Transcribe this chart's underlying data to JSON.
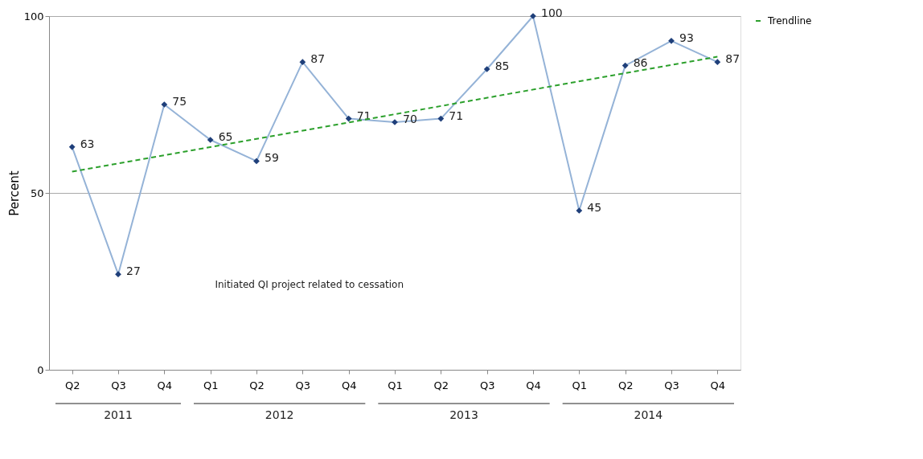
{
  "chart_data": {
    "type": "line",
    "ylabel": "Percent",
    "categories": [
      "Q2",
      "Q3",
      "Q4",
      "Q1",
      "Q2",
      "Q3",
      "Q4",
      "Q1",
      "Q2",
      "Q3",
      "Q4",
      "Q1",
      "Q2",
      "Q3",
      "Q4"
    ],
    "series": [
      {
        "color": "#95b3d7",
        "values": [
          63,
          27,
          75,
          65,
          59,
          87,
          71,
          70,
          71,
          85,
          100,
          45,
          86,
          93,
          87
        ],
        "marker": "diamond",
        "line_style": "solid",
        "data_labels": true
      },
      {
        "name": "Trendline",
        "type": "line",
        "color": "#2ca02c",
        "line_style": "dashed",
        "marker": "none",
        "values": [
          56,
          null,
          null,
          null,
          null,
          null,
          null,
          null,
          null,
          null,
          null,
          null,
          null,
          null,
          88.5
        ]
      }
    ],
    "ylim": [
      0,
      100
    ],
    "yticks": [
      0,
      50,
      100
    ],
    "grid": "y",
    "legend": "right",
    "annotations": [
      "Initiated QI project related to cessation",
      "2011",
      "2012",
      "2013",
      "2014"
    ]
  }
}
